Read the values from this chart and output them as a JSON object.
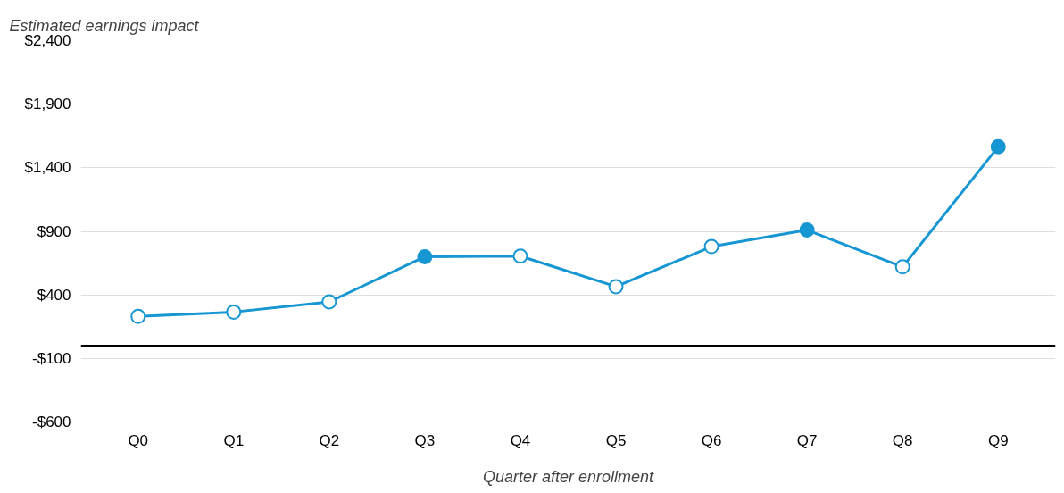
{
  "chart_data": {
    "type": "line",
    "ylabel": "Estimated earnings impact",
    "xlabel": "Quarter after enrollment",
    "categories": [
      "Q0",
      "Q1",
      "Q2",
      "Q3",
      "Q4",
      "Q5",
      "Q6",
      "Q7",
      "Q8",
      "Q9"
    ],
    "series": [
      {
        "color": "#1696d2",
        "values": [
          230,
          265,
          345,
          700,
          705,
          465,
          780,
          910,
          620,
          1565
        ],
        "colors": [
          "#ffffff",
          "#ffffff",
          "#ffffff",
          "#1696d2",
          "#ffffff",
          "#ffffff",
          "#ffffff",
          "#1696d2",
          "#ffffff",
          "#1696d2"
        ]
      }
    ],
    "ylim": [
      -600,
      2400
    ],
    "yticks": [
      {
        "value": -600,
        "label": "-$600"
      },
      {
        "value": -100,
        "label": "-$100"
      },
      {
        "value": 400,
        "label": "$400"
      },
      {
        "value": 900,
        "label": "$900"
      },
      {
        "value": 1400,
        "label": "$1,400"
      },
      {
        "value": 1900,
        "label": "$1,900"
      },
      {
        "value": 2400,
        "label": "$2,400"
      }
    ],
    "ref_lines": [
      {
        "axis": "y",
        "value": 0,
        "color": "#000000"
      }
    ],
    "grid": "y",
    "marker": "circle",
    "line_style": "solid"
  }
}
